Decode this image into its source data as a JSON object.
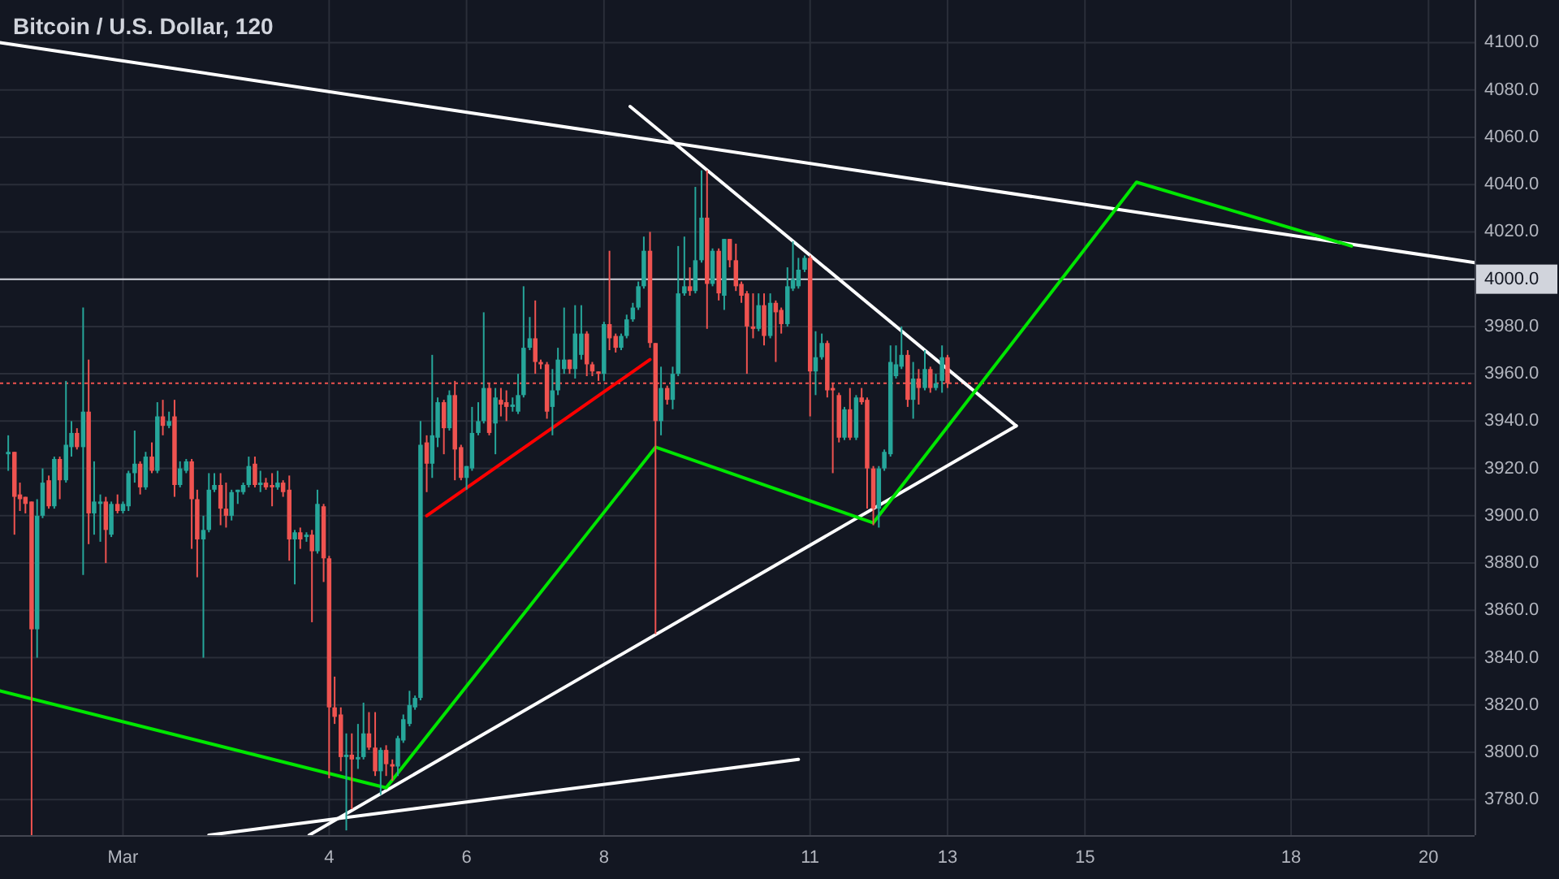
{
  "chart_data": {
    "type": "candlestick",
    "title": "Bitcoin / U.S. Dollar, 120",
    "x": [
      -0.67,
      -0.58,
      -0.5,
      -0.42,
      -0.33,
      -0.25,
      -0.17,
      -0.08,
      0,
      0.08,
      0.17,
      0.25,
      0.33,
      0.42,
      0.5,
      0.58,
      0.67,
      0.75,
      0.83,
      0.92,
      1,
      1.08,
      1.17,
      1.25,
      1.33,
      1.42,
      1.5,
      1.58,
      1.67,
      1.75,
      1.83,
      1.92,
      2,
      2.08,
      2.17,
      2.25,
      2.33,
      2.42,
      2.5,
      2.58,
      2.67,
      2.75,
      2.83,
      2.92,
      3,
      3.08,
      3.17,
      3.25,
      3.33,
      3.42,
      3.5,
      3.58,
      3.67,
      3.75,
      3.83,
      3.92,
      4,
      4.08,
      4.17,
      4.25,
      4.33,
      4.42,
      4.5,
      4.58,
      4.67,
      4.75,
      4.83,
      4.92,
      5,
      5.08,
      5.17,
      5.25,
      5.33,
      5.42,
      5.5,
      5.58,
      5.67,
      5.75,
      5.83,
      5.92,
      6,
      6.08,
      6.17,
      6.25,
      6.33,
      6.42,
      6.5,
      6.58,
      6.67,
      6.75,
      6.83,
      6.92,
      7,
      7.08,
      7.17,
      7.25,
      7.33,
      7.42,
      7.5,
      7.58,
      7.67,
      7.75,
      7.83,
      7.92,
      8,
      8.08,
      8.17,
      8.25,
      8.33,
      8.42,
      8.5,
      8.58,
      8.67,
      8.75,
      8.83,
      8.92,
      9,
      9.08,
      9.17,
      9.25,
      9.33,
      9.42,
      9.5,
      9.58,
      9.67,
      9.75,
      9.83,
      9.92,
      10,
      10.08,
      10.17,
      10.25,
      10.33,
      10.42,
      10.5,
      10.58,
      10.67,
      10.75,
      10.83,
      10.92,
      11,
      11.08,
      11.17,
      11.25,
      11.33,
      11.42,
      11.5,
      11.58,
      11.67,
      11.75,
      11.83,
      11.92,
      12,
      12.08,
      12.17,
      12.25,
      12.33,
      12.42,
      12.5,
      12.58,
      12.67,
      12.75,
      12.83,
      12.92,
      13
    ],
    "ohlc": [
      [
        3926,
        3934,
        3919,
        3927
      ],
      [
        3927,
        3927,
        3892,
        3908
      ],
      [
        3909,
        3914,
        3902,
        3907
      ],
      [
        3908,
        3908,
        3901,
        3905
      ],
      [
        3906,
        3906,
        3765,
        3852
      ],
      [
        3852,
        3907,
        3840,
        3900
      ],
      [
        3900,
        3920,
        3899,
        3914
      ],
      [
        3915,
        3917,
        3903,
        3904
      ],
      [
        3904,
        3925,
        3903,
        3924
      ],
      [
        3924,
        3925,
        3907,
        3915
      ],
      [
        3915,
        3957,
        3914,
        3930
      ],
      [
        3929,
        3940,
        3925,
        3935
      ],
      [
        3935,
        3937,
        3928,
        3929
      ],
      [
        3929,
        3988,
        3875,
        3944
      ],
      [
        3944,
        3966,
        3888,
        3901
      ],
      [
        3901,
        3923,
        3892,
        3906
      ],
      [
        3905,
        3909,
        3889,
        3906
      ],
      [
        3906,
        3908,
        3880,
        3894
      ],
      [
        3892,
        3906,
        3891,
        3905
      ],
      [
        3905,
        3909,
        3901,
        3902
      ],
      [
        3902,
        3906,
        3901,
        3905
      ],
      [
        3904,
        3919,
        3902,
        3918
      ],
      [
        3918,
        3936,
        3914,
        3922
      ],
      [
        3922,
        3923,
        3909,
        3912
      ],
      [
        3912,
        3927,
        3911,
        3925
      ],
      [
        3925,
        3931,
        3918,
        3919
      ],
      [
        3919,
        3948,
        3918,
        3942
      ],
      [
        3942,
        3949,
        3934,
        3938
      ],
      [
        3938,
        3944,
        3937,
        3940
      ],
      [
        3942,
        3949,
        3908,
        3913
      ],
      [
        3913,
        3923,
        3912,
        3920
      ],
      [
        3919,
        3924,
        3918,
        3923
      ],
      [
        3923,
        3924,
        3886,
        3907
      ],
      [
        3907,
        3911,
        3874,
        3890
      ],
      [
        3890,
        3900,
        3840,
        3894
      ],
      [
        3894,
        3918,
        3893,
        3911
      ],
      [
        3911,
        3918,
        3910,
        3913
      ],
      [
        3913,
        3918,
        3896,
        3903
      ],
      [
        3903,
        3914,
        3895,
        3900
      ],
      [
        3900,
        3911,
        3898,
        3910
      ],
      [
        3910,
        3911,
        3905,
        3911
      ],
      [
        3910,
        3914,
        3909,
        3913
      ],
      [
        3913,
        3925,
        3912,
        3921
      ],
      [
        3922,
        3925,
        3912,
        3913
      ],
      [
        3913,
        3919,
        3910,
        3914
      ],
      [
        3914,
        3916,
        3911,
        3912
      ],
      [
        3913,
        3918,
        3904,
        3912
      ],
      [
        3912,
        3919,
        3911,
        3914
      ],
      [
        3914,
        3915,
        3908,
        3910
      ],
      [
        3911,
        3917,
        3881,
        3890
      ],
      [
        3890,
        3894,
        3871,
        3893
      ],
      [
        3893,
        3895,
        3886,
        3890
      ],
      [
        3891,
        3893,
        3889,
        3892
      ],
      [
        3892,
        3894,
        3855,
        3885
      ],
      [
        3885,
        3911,
        3884,
        3905
      ],
      [
        3904,
        3905,
        3872,
        3882
      ],
      [
        3882,
        3883,
        3789,
        3819
      ],
      [
        3819,
        3832,
        3812,
        3815
      ],
      [
        3816,
        3819,
        3792,
        3798
      ],
      [
        3798,
        3808,
        3767,
        3799
      ],
      [
        3799,
        3808,
        3776,
        3797
      ],
      [
        3797,
        3812,
        3793,
        3798
      ],
      [
        3798,
        3821,
        3797,
        3808
      ],
      [
        3808,
        3817,
        3801,
        3802
      ],
      [
        3802,
        3817,
        3790,
        3792
      ],
      [
        3792,
        3802,
        3782,
        3801
      ],
      [
        3801,
        3803,
        3790,
        3795
      ],
      [
        3795,
        3797,
        3788,
        3794
      ],
      [
        3794,
        3807,
        3790,
        3806
      ],
      [
        3805,
        3816,
        3804,
        3814
      ],
      [
        3812,
        3826,
        3811,
        3820
      ],
      [
        3819,
        3824,
        3818,
        3823
      ],
      [
        3823,
        3940,
        3822,
        3930
      ],
      [
        3931,
        3934,
        3910,
        3922
      ],
      [
        3922,
        3968,
        3916,
        3934
      ],
      [
        3933,
        3950,
        3929,
        3948
      ],
      [
        3948,
        3949,
        3926,
        3937
      ],
      [
        3937,
        3953,
        3936,
        3951
      ],
      [
        3951,
        3957,
        3915,
        3928
      ],
      [
        3929,
        3930,
        3915,
        3916
      ],
      [
        3916,
        3921,
        3911,
        3921
      ],
      [
        3920,
        3946,
        3919,
        3935
      ],
      [
        3935,
        3948,
        3934,
        3940
      ],
      [
        3940,
        3986,
        3939,
        3954
      ],
      [
        3954,
        3956,
        3934,
        3935
      ],
      [
        3939,
        3954,
        3926,
        3950
      ],
      [
        3949,
        3954,
        3942,
        3947
      ],
      [
        3948,
        3953,
        3940,
        3946
      ],
      [
        3946,
        3950,
        3944,
        3947
      ],
      [
        3944,
        3960,
        3943,
        3951
      ],
      [
        3951,
        3997,
        3950,
        3971
      ],
      [
        3971,
        3984,
        3970,
        3975
      ],
      [
        3975,
        3991,
        3960,
        3965
      ],
      [
        3965,
        3966,
        3962,
        3964
      ],
      [
        3964,
        3965,
        3941,
        3944
      ],
      [
        3946,
        3962,
        3934,
        3953
      ],
      [
        3953,
        3971,
        3951,
        3966
      ],
      [
        3962,
        3988,
        3960,
        3966
      ],
      [
        3966,
        3966,
        3960,
        3962
      ],
      [
        3962,
        3989,
        3958,
        3977
      ],
      [
        3968,
        3989,
        3966,
        3977
      ],
      [
        3977,
        3978,
        3959,
        3964
      ],
      [
        3964,
        3965,
        3959,
        3961
      ],
      [
        3961,
        3961,
        3957,
        3960
      ],
      [
        3960,
        3982,
        3957,
        3981
      ],
      [
        3981,
        4012,
        3970,
        3975
      ],
      [
        3976,
        3977,
        3969,
        3971
      ],
      [
        3971,
        3977,
        3970,
        3976
      ],
      [
        3976,
        3985,
        3975,
        3983
      ],
      [
        3983,
        3990,
        3982,
        3988
      ],
      [
        3988,
        3999,
        3987,
        3997
      ],
      [
        3997,
        4018,
        3996,
        4012
      ],
      [
        4012,
        4020,
        3971,
        3973
      ],
      [
        3973,
        3973,
        3850,
        3940
      ],
      [
        3940,
        3963,
        3934,
        3954
      ],
      [
        3954,
        3955,
        3947,
        3949
      ],
      [
        3949,
        3963,
        3945,
        3960
      ],
      [
        3960,
        4014,
        3959,
        3994
      ],
      [
        3994,
        4018,
        3993,
        3997
      ],
      [
        3997,
        4005,
        3993,
        3995
      ],
      [
        3995,
        4039,
        3994,
        4008
      ],
      [
        4008,
        4046,
        4007,
        4026
      ],
      [
        4026,
        4046,
        3979,
        3998
      ],
      [
        3998,
        4013,
        3997,
        4012
      ],
      [
        4012,
        4013,
        3991,
        3994
      ],
      [
        3993,
        4017,
        3987,
        4017
      ],
      [
        4017,
        4017,
        4005,
        4008
      ],
      [
        4008,
        4015,
        3995,
        3997
      ],
      [
        3998,
        3999,
        3990,
        3993
      ],
      [
        3994,
        3995,
        3960,
        3980
      ],
      [
        3980,
        3994,
        3975,
        3979
      ],
      [
        3979,
        3994,
        3978,
        3989
      ],
      [
        3989,
        3994,
        3972,
        3976
      ],
      [
        3976,
        3994,
        3975,
        3990
      ],
      [
        3990,
        3991,
        3965,
        3986
      ],
      [
        3987,
        3988,
        3977,
        3981
      ],
      [
        3981,
        4005,
        3980,
        3997
      ],
      [
        3996,
        4016,
        3995,
        4000
      ],
      [
        3997,
        4009,
        3996,
        4004
      ],
      [
        4004,
        4010,
        4003,
        4009
      ],
      [
        4009,
        4010,
        3942,
        3961
      ],
      [
        3961,
        3978,
        3951,
        3967
      ],
      [
        3967,
        3977,
        3966,
        3973
      ],
      [
        3973,
        3974,
        3950,
        3953
      ],
      [
        3954,
        3956,
        3918,
        3953
      ],
      [
        3951,
        3952,
        3931,
        3933
      ],
      [
        3933,
        3946,
        3932,
        3945
      ],
      [
        3945,
        3954,
        3932,
        3933
      ],
      [
        3933,
        3951,
        3932,
        3950
      ],
      [
        3950,
        3954,
        3947,
        3948
      ],
      [
        3949,
        3950,
        3903,
        3920
      ],
      [
        3920,
        3921,
        3896,
        3903
      ],
      [
        3903,
        3921,
        3895,
        3920
      ],
      [
        3920,
        3928,
        3919,
        3927
      ],
      [
        3926,
        3972,
        3925,
        3965
      ],
      [
        3959,
        3972,
        3958,
        3964
      ],
      [
        3963,
        3980,
        3962,
        3968
      ],
      [
        3968,
        3970,
        3946,
        3949
      ],
      [
        3949,
        3965,
        3941,
        3958
      ],
      [
        3958,
        3962,
        3947,
        3954
      ],
      [
        3954,
        3970,
        3953,
        3962
      ],
      [
        3962,
        3963,
        3952,
        3954
      ],
      [
        3954,
        3960,
        3953,
        3956
      ],
      [
        3957,
        3972,
        3952,
        3967
      ],
      [
        3967,
        3968,
        3954,
        3956
      ]
    ],
    "colors": [
      "#26a69a",
      "#ef5350",
      "#ef5350",
      "#ef5350",
      "#ef5350",
      "#26a69a",
      "#26a69a",
      "#ef5350",
      "#26a69a",
      "#ef5350",
      "#26a69a",
      "#26a69a",
      "#ef5350",
      "#26a69a",
      "#ef5350",
      "#26a69a",
      "#26a69a",
      "#ef5350",
      "#26a69a",
      "#ef5350",
      "#26a69a",
      "#26a69a",
      "#26a69a",
      "#ef5350",
      "#26a69a",
      "#ef5350",
      "#26a69a",
      "#ef5350",
      "#26a69a",
      "#ef5350",
      "#26a69a",
      "#26a69a",
      "#ef5350",
      "#ef5350",
      "#26a69a",
      "#26a69a",
      "#26a69a",
      "#ef5350",
      "#ef5350",
      "#26a69a",
      "#26a69a",
      "#26a69a",
      "#26a69a",
      "#ef5350",
      "#26a69a",
      "#ef5350",
      "#ef5350",
      "#26a69a",
      "#ef5350",
      "#ef5350",
      "#26a69a",
      "#ef5350",
      "#26a69a",
      "#ef5350",
      "#26a69a",
      "#ef5350",
      "#ef5350",
      "#ef5350",
      "#ef5350",
      "#26a69a",
      "#ef5350",
      "#26a69a",
      "#26a69a",
      "#ef5350",
      "#ef5350",
      "#26a69a",
      "#ef5350",
      "#ef5350",
      "#26a69a",
      "#26a69a",
      "#26a69a",
      "#26a69a",
      "#26a69a",
      "#ef5350",
      "#26a69a",
      "#26a69a",
      "#ef5350",
      "#26a69a",
      "#ef5350",
      "#ef5350",
      "#26a69a",
      "#26a69a",
      "#26a69a",
      "#26a69a",
      "#ef5350",
      "#26a69a",
      "#ef5350",
      "#ef5350",
      "#26a69a",
      "#26a69a",
      "#26a69a",
      "#26a69a",
      "#ef5350",
      "#ef5350",
      "#ef5350",
      "#26a69a",
      "#26a69a",
      "#26a69a",
      "#ef5350",
      "#26a69a",
      "#26a69a",
      "#ef5350",
      "#ef5350",
      "#ef5350",
      "#26a69a",
      "#ef5350",
      "#ef5350",
      "#26a69a",
      "#26a69a",
      "#26a69a",
      "#26a69a",
      "#26a69a",
      "#ef5350",
      "#ef5350",
      "#26a69a",
      "#ef5350",
      "#26a69a",
      "#26a69a",
      "#26a69a",
      "#ef5350",
      "#26a69a",
      "#26a69a",
      "#ef5350",
      "#26a69a",
      "#ef5350",
      "#26a69a",
      "#ef5350",
      "#ef5350",
      "#ef5350",
      "#ef5350",
      "#ef5350",
      "#26a69a",
      "#ef5350",
      "#26a69a",
      "#ef5350",
      "#ef5350",
      "#26a69a",
      "#26a69a",
      "#26a69a",
      "#26a69a",
      "#ef5350",
      "#26a69a",
      "#26a69a",
      "#ef5350",
      "#ef5350",
      "#ef5350",
      "#26a69a",
      "#ef5350",
      "#26a69a",
      "#ef5350",
      "#ef5350",
      "#ef5350",
      "#26a69a",
      "#26a69a",
      "#26a69a",
      "#26a69a",
      "#26a69a",
      "#ef5350",
      "#26a69a",
      "#ef5350",
      "#26a69a",
      "#ef5350",
      "#26a69a",
      "#26a69a",
      "#ef5350"
    ],
    "series": [
      {
        "type": "line",
        "color": "#ffffff",
        "x": [
          -0.79,
          20.67
        ],
        "values": [
          4100,
          4007
        ]
      },
      {
        "type": "line",
        "color": "#ffffff",
        "x": [
          8.38,
          14
        ],
        "values": [
          4073,
          3938
        ]
      },
      {
        "type": "line",
        "color": "#ffffff",
        "x": [
          3.71,
          14
        ],
        "values": [
          3765,
          3938
        ]
      },
      {
        "type": "line",
        "color": "#ffffff",
        "x": [
          2.25,
          10.83
        ],
        "values": [
          3765,
          3797
        ]
      },
      {
        "type": "line",
        "color": "#ff0000",
        "x": [
          5.42,
          8.67
        ],
        "values": [
          3900,
          3966
        ]
      },
      {
        "type": "line",
        "color": "#00e600",
        "x": [
          -0.79,
          4.83,
          8.75,
          11.92,
          15.75,
          18.88
        ],
        "values": [
          3826,
          3785,
          3929,
          3897,
          4041,
          4014
        ]
      }
    ],
    "xlim": [
      -0.79,
      20.67
    ],
    "xticks": [
      {
        "value": 1,
        "label": "Mar"
      },
      4,
      6,
      8,
      11,
      13,
      15,
      18,
      20
    ],
    "ylim": [
      3765,
      4118
    ],
    "yticks": [
      {
        "value": 3780,
        "label": "3780.0"
      },
      {
        "value": 3800,
        "label": "3800.0"
      },
      {
        "value": 3820,
        "label": "3820.0"
      },
      {
        "value": 3840,
        "label": "3840.0"
      },
      {
        "value": 3860,
        "label": "3860.0"
      },
      {
        "value": 3880,
        "label": "3880.0"
      },
      {
        "value": 3900,
        "label": "3900.0"
      },
      {
        "value": 3920,
        "label": "3920.0"
      },
      {
        "value": 3940,
        "label": "3940.0"
      },
      {
        "value": 3960,
        "label": "3960.0"
      },
      {
        "value": 3980,
        "label": "3980.0"
      },
      {
        "value": 4020,
        "label": "4020.0"
      },
      {
        "value": 4040,
        "label": "4040.0"
      },
      {
        "value": 4060,
        "label": "4060.0"
      },
      {
        "value": 4080,
        "label": "4080.0"
      },
      {
        "value": 4100,
        "label": "4100.0"
      }
    ],
    "ref_lines": [
      {
        "axis": "y",
        "value": 4000,
        "label": "4000.0",
        "color": "#d1d4dc"
      },
      {
        "axis": "y",
        "value": 3956,
        "color": "#ef5350",
        "line_style": "dotted"
      }
    ],
    "grid": true
  }
}
